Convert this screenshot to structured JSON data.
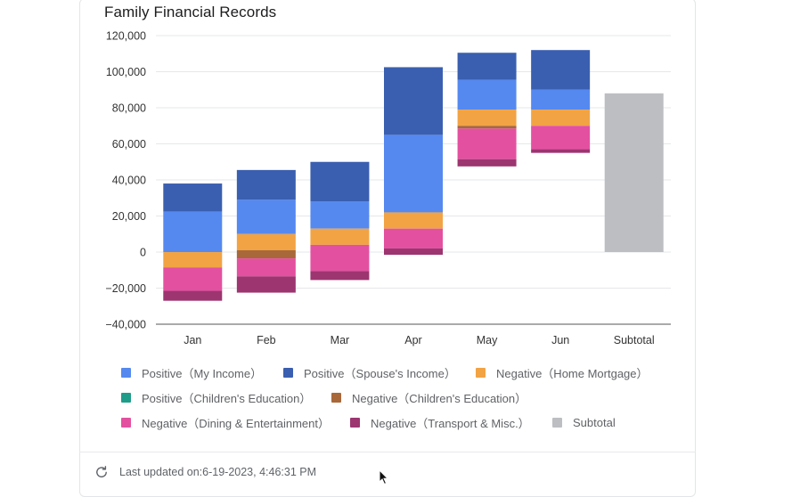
{
  "chart_data": {
    "type": "bar",
    "stacked": true,
    "title": "Family Financial Records",
    "categories": [
      "Jan",
      "Feb",
      "Mar",
      "Apr",
      "May",
      "Jun",
      "Subtotal"
    ],
    "ylim": [
      -40000,
      120000
    ],
    "yticks": [
      "120,000",
      "100,000",
      "80,000",
      "60,000",
      "40,000",
      "20,000",
      "0",
      "−20,000",
      "−40,000"
    ],
    "ytick_values": [
      120000,
      100000,
      80000,
      60000,
      40000,
      20000,
      0,
      -20000,
      -40000
    ],
    "grid": true,
    "legend_position": "bottom",
    "series": [
      {
        "name": "Positive（My Income）",
        "color": "#5589f0",
        "segments": [
          [
            0,
            22500
          ],
          [
            10000,
            29000
          ],
          [
            13000,
            28000
          ],
          [
            22000,
            65000
          ],
          [
            79000,
            95500
          ],
          [
            79000,
            90000
          ],
          null
        ]
      },
      {
        "name": "Positive（Spouse's Income）",
        "color": "#3a5fb0",
        "segments": [
          [
            22500,
            38000
          ],
          [
            29000,
            45500
          ],
          [
            28000,
            50000
          ],
          [
            65000,
            102500
          ],
          [
            95500,
            110500
          ],
          [
            90000,
            112000
          ],
          null
        ]
      },
      {
        "name": "Negative（Home Mortgage）",
        "color": "#f2a344",
        "segments": [
          [
            -8500,
            0
          ],
          [
            1000,
            10000
          ],
          [
            4000,
            13000
          ],
          [
            13000,
            22000
          ],
          [
            70000,
            79000
          ],
          [
            70000,
            79000
          ],
          null
        ]
      },
      {
        "name": "Positive（Children's Education）",
        "color": "#1f9d89",
        "segments": [
          null,
          null,
          null,
          null,
          null,
          null,
          null
        ]
      },
      {
        "name": "Negative（Children's Education）",
        "color": "#a8683a",
        "segments": [
          null,
          [
            -3500,
            1000
          ],
          null,
          null,
          [
            68500,
            70000
          ],
          null,
          null
        ]
      },
      {
        "name": "Negative（Dining & Entertainment）",
        "color": "#e450a0",
        "segments": [
          [
            -21500,
            -8500
          ],
          [
            -13500,
            -3500
          ],
          [
            -10500,
            4000
          ],
          [
            2000,
            13000
          ],
          [
            51500,
            68500
          ],
          [
            57000,
            70000
          ],
          null
        ]
      },
      {
        "name": "Negative（Transport & Misc.）",
        "color": "#9c3570",
        "segments": [
          [
            -27000,
            -21500
          ],
          [
            -22500,
            -13500
          ],
          [
            -15500,
            -10500
          ],
          [
            -1500,
            2000
          ],
          [
            47500,
            51500
          ],
          [
            55000,
            57000
          ],
          null
        ]
      },
      {
        "name": "Subtotal",
        "color": "#bcbec2",
        "segments": [
          null,
          null,
          null,
          null,
          null,
          null,
          [
            0,
            88000
          ]
        ]
      }
    ]
  },
  "legend": {
    "items": [
      {
        "label": "Positive（My Income）",
        "color": "#5589f0"
      },
      {
        "label": "Positive（Spouse's Income）",
        "color": "#3a5fb0"
      },
      {
        "label": "Negative（Home Mortgage）",
        "color": "#f2a344"
      },
      {
        "label": "Positive（Children's Education）",
        "color": "#1f9d89"
      },
      {
        "label": "Negative（Children's Education）",
        "color": "#a8683a"
      },
      {
        "label": "Negative（Dining & Entertainment）",
        "color": "#e450a0"
      },
      {
        "label": "Negative（Transport & Misc.）",
        "color": "#9c3570"
      },
      {
        "label": "Subtotal",
        "color": "#bcbec2"
      }
    ]
  },
  "footer": {
    "last_updated": "Last updated on:6-19-2023, 4:46:31 PM",
    "refresh_icon": "refresh-icon"
  }
}
